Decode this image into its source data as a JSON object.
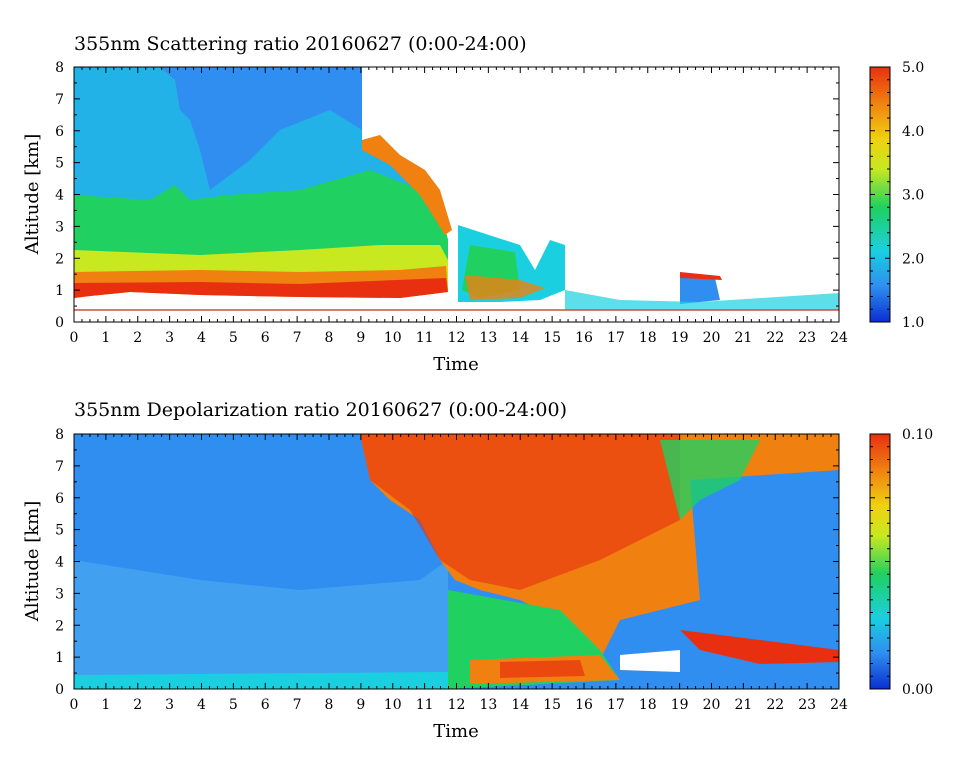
{
  "chart_data": [
    {
      "type": "heatmap",
      "title": "355nm Scattering ratio  20160627 (0:00-24:00)",
      "xlabel": "Time",
      "ylabel": "Altitude [km]",
      "xlim": [
        0,
        24
      ],
      "ylim": [
        0,
        8
      ],
      "x_ticks": [
        "0",
        "1",
        "2",
        "3",
        "4",
        "5",
        "6",
        "7",
        "8",
        "9",
        "10",
        "11",
        "12",
        "13",
        "14",
        "15",
        "16",
        "17",
        "18",
        "19",
        "20",
        "21",
        "22",
        "23",
        "24"
      ],
      "y_ticks": [
        "0",
        "1",
        "2",
        "3",
        "4",
        "5",
        "6",
        "7",
        "8"
      ],
      "colorbar": {
        "min": 1.0,
        "max": 5.0,
        "tick_labels": [
          "1.0",
          "2.0",
          "3.0",
          "4.0",
          "5.0"
        ],
        "tick_values": [
          1.0,
          2.0,
          3.0,
          4.0,
          5.0
        ]
      },
      "colormap": [
        "#0a2fd0",
        "#2f8ef0",
        "#1ad0e0",
        "#20d060",
        "#c8e820",
        "#f0d010",
        "#f08010",
        "#e83010"
      ],
      "reference_line_altitude_km": 0.35,
      "reference_line_color": "#c8503c",
      "features": [
        {
          "description": "boundary layer top",
          "time_start": 0,
          "time_end": 11.7,
          "altitude_km": 1.0,
          "value": 4.6
        },
        {
          "description": "elevated layer",
          "time_start": 6,
          "time_end": 11.7,
          "altitude_km": 2.4,
          "value": 3.1
        },
        {
          "description": "elevated layer",
          "time_start": 7,
          "time_end": 8.7,
          "altitude_km": 3.2,
          "value": 3.0
        },
        {
          "description": "cloud",
          "time_start": 9,
          "time_end": 12,
          "altitude_km": 7.0,
          "value": 5.0
        },
        {
          "description": "low cloud/aerosol",
          "time_start": 12.3,
          "time_end": 15.5,
          "altitude_km": 1.5,
          "value": 2.5
        },
        {
          "description": "layer",
          "time_start": 19.2,
          "time_end": 20.5,
          "altitude_km": 1.1,
          "value": 1.6
        }
      ]
    },
    {
      "type": "heatmap",
      "title": "355nm Depolarization ratio  20160627 (0:00-24:00)",
      "xlabel": "Time",
      "ylabel": "Altitude [km]",
      "xlim": [
        0,
        24
      ],
      "ylim": [
        0,
        8
      ],
      "x_ticks": [
        "0",
        "1",
        "2",
        "3",
        "4",
        "5",
        "6",
        "7",
        "8",
        "9",
        "10",
        "11",
        "12",
        "13",
        "14",
        "15",
        "16",
        "17",
        "18",
        "19",
        "20",
        "21",
        "22",
        "23",
        "24"
      ],
      "y_ticks": [
        "0",
        "1",
        "2",
        "3",
        "4",
        "5",
        "6",
        "7",
        "8"
      ],
      "colorbar": {
        "min": 0.0,
        "max": 0.1,
        "tick_labels": [
          "0.00",
          "0.10"
        ],
        "tick_values": [
          0.0,
          0.1
        ]
      },
      "colormap": [
        "#0a2fd0",
        "#2f8ef0",
        "#1ad0e0",
        "#20d060",
        "#c8e820",
        "#f0d010",
        "#f08010",
        "#e83010"
      ],
      "features": [
        {
          "description": "low depolarization near surface",
          "time_start": 0,
          "time_end": 11.7,
          "altitude_km": 0.4,
          "value": 0.01
        },
        {
          "description": "dust/aerosol near surface",
          "time_start": 12.5,
          "time_end": 16.5,
          "altitude_km": 0.55,
          "value": 0.08
        },
        {
          "description": "noisy high region",
          "time_start": 9,
          "time_end": 19,
          "altitude_km": 5.0,
          "value": 0.07
        },
        {
          "description": "cloud edge",
          "time_start": 18,
          "time_end": 24,
          "altitude_km": 1.2,
          "value": 0.1
        }
      ]
    }
  ]
}
